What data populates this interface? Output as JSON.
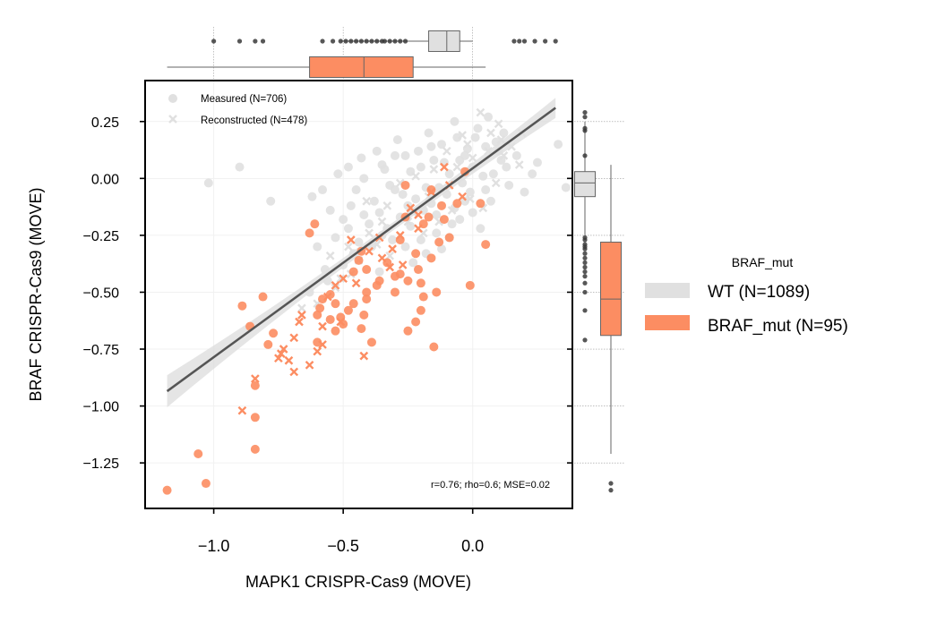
{
  "chart_data": {
    "type": "scatter",
    "xlabel": "MAPK1 CRISPR-Cas9 (MOVE)",
    "ylabel": "BRAF CRISPR-Cas9 (MOVE)",
    "xlim": [
      -1.265,
      0.385
    ],
    "ylim": [
      -1.45,
      0.43
    ],
    "xticks": [
      -1.0,
      -0.5,
      0.0
    ],
    "xtick_labels": [
      "−1.0",
      "−0.5",
      "0.0"
    ],
    "yticks": [
      0.25,
      0.0,
      -0.25,
      -0.5,
      -0.75,
      -1.0,
      -1.25
    ],
    "ytick_labels": [
      "0.25",
      "0.00",
      "−0.25",
      "−0.50",
      "−0.75",
      "−1.00",
      "−1.25"
    ],
    "grid": true,
    "annotation": "r=0.76; rho=0.6; MSE=0.02",
    "marker_legend": {
      "placement": "top-left",
      "entries": [
        {
          "label": "Measured (N=706)",
          "marker": "circle"
        },
        {
          "label": "Reconstructed (N=478)",
          "marker": "x"
        }
      ]
    },
    "hue_legend": {
      "title": "BRAF_mut",
      "placement": "outside-right",
      "entries": [
        {
          "label": "WT (N=1089)",
          "color": "#e0e0e0"
        },
        {
          "label": "BRAF_mut (N=95)",
          "color": "#fc8d62"
        }
      ]
    },
    "regression_line": {
      "x": [
        -1.18,
        0.32
      ],
      "y": [
        -0.935,
        0.31
      ]
    },
    "colors": {
      "wt": "#e0e0e0",
      "mut": "#fc8d62",
      "line": "#555555",
      "ci": "#dcdcdc"
    },
    "series": [
      {
        "name": "BRAF_mut",
        "measured": [
          [
            -1.18,
            -1.37
          ],
          [
            -1.03,
            -1.34
          ],
          [
            -1.06,
            -1.21
          ],
          [
            -0.84,
            -1.19
          ],
          [
            -0.84,
            -1.05
          ],
          [
            -0.84,
            -0.91
          ],
          [
            -0.79,
            -0.73
          ],
          [
            -0.77,
            -0.68
          ],
          [
            -0.86,
            -0.65
          ],
          [
            -0.81,
            -0.52
          ],
          [
            -0.89,
            -0.56
          ],
          [
            -0.61,
            -0.2
          ],
          [
            -0.63,
            -0.24
          ],
          [
            -0.6,
            -0.6
          ],
          [
            -0.59,
            -0.57
          ],
          [
            -0.58,
            -0.53
          ],
          [
            -0.55,
            -0.51
          ],
          [
            -0.53,
            -0.55
          ],
          [
            -0.5,
            -0.64
          ],
          [
            -0.48,
            -0.58
          ],
          [
            -0.46,
            -0.41
          ],
          [
            -0.43,
            -0.32
          ],
          [
            -0.41,
            -0.5
          ],
          [
            -0.43,
            -0.66
          ],
          [
            -0.36,
            -0.45
          ],
          [
            -0.33,
            -0.37
          ],
          [
            -0.3,
            -0.5
          ],
          [
            -0.28,
            -0.42
          ],
          [
            -0.25,
            -0.45
          ],
          [
            -0.22,
            -0.33
          ],
          [
            -0.2,
            -0.46
          ],
          [
            -0.19,
            -0.52
          ],
          [
            -0.2,
            -0.58
          ],
          [
            -0.22,
            -0.63
          ],
          [
            -0.25,
            -0.67
          ],
          [
            -0.21,
            -0.4
          ],
          [
            -0.16,
            -0.35
          ],
          [
            -0.13,
            -0.28
          ],
          [
            -0.09,
            -0.26
          ],
          [
            -0.11,
            -0.18
          ],
          [
            -0.17,
            -0.17
          ],
          [
            -0.06,
            -0.11
          ],
          [
            -0.03,
            0.03
          ],
          [
            0.03,
            -0.11
          ],
          [
            0.05,
            -0.29
          ],
          [
            -0.01,
            -0.47
          ],
          [
            -0.15,
            -0.74
          ],
          [
            -0.14,
            -0.5
          ],
          [
            -0.53,
            -0.67
          ],
          [
            -0.51,
            -0.61
          ],
          [
            -0.46,
            -0.55
          ],
          [
            -0.42,
            -0.6
          ],
          [
            -0.37,
            -0.47
          ],
          [
            -0.3,
            -0.43
          ],
          [
            -0.26,
            -0.17
          ],
          [
            -0.26,
            -0.03
          ],
          [
            -0.41,
            -0.4
          ],
          [
            -0.44,
            -0.36
          ],
          [
            -0.19,
            -0.2
          ],
          [
            -0.16,
            -0.05
          ],
          [
            -0.12,
            -0.12
          ],
          [
            -0.28,
            -0.27
          ],
          [
            -0.55,
            -0.62
          ],
          [
            -0.6,
            -0.72
          ],
          [
            -0.41,
            -0.53
          ],
          [
            -0.39,
            -0.72
          ]
        ],
        "reconstructed": [
          [
            -0.89,
            -1.02
          ],
          [
            -0.84,
            -0.88
          ],
          [
            -0.73,
            -0.75
          ],
          [
            -0.75,
            -0.79
          ],
          [
            -0.71,
            -0.8
          ],
          [
            -0.69,
            -0.85
          ],
          [
            -0.63,
            -0.82
          ],
          [
            -0.67,
            -0.63
          ],
          [
            -0.6,
            -0.76
          ],
          [
            -0.58,
            -0.73
          ],
          [
            -0.53,
            -0.47
          ],
          [
            -0.5,
            -0.44
          ],
          [
            -0.47,
            -0.27
          ],
          [
            -0.42,
            -0.78
          ],
          [
            -0.4,
            -0.32
          ],
          [
            -0.36,
            -0.26
          ],
          [
            -0.35,
            -0.35
          ],
          [
            -0.31,
            -0.31
          ],
          [
            -0.21,
            -0.16
          ],
          [
            -0.16,
            -0.06
          ],
          [
            -0.11,
            0.05
          ],
          [
            -0.09,
            -0.03
          ],
          [
            -0.04,
            -0.08
          ],
          [
            -0.24,
            -0.13
          ],
          [
            -0.28,
            -0.25
          ],
          [
            -0.21,
            -0.22
          ],
          [
            -0.27,
            -0.38
          ],
          [
            -0.32,
            -0.39
          ],
          [
            -0.45,
            -0.46
          ],
          [
            -0.56,
            -0.52
          ],
          [
            -0.58,
            -0.65
          ],
          [
            -0.69,
            -0.7
          ],
          [
            -0.74,
            -0.77
          ],
          [
            -0.51,
            -0.63
          ],
          [
            -0.66,
            -0.6
          ]
        ]
      },
      {
        "name": "WT",
        "measured": [
          [
            -0.9,
            0.05
          ],
          [
            -1.02,
            -0.02
          ],
          [
            -0.78,
            -0.1
          ],
          [
            -0.52,
            0.02
          ],
          [
            -0.48,
            0.05
          ],
          [
            -0.45,
            -0.05
          ],
          [
            -0.42,
            0.0
          ],
          [
            -0.38,
            -0.1
          ],
          [
            -0.35,
            0.06
          ],
          [
            -0.32,
            -0.03
          ],
          [
            -0.3,
            0.1
          ],
          [
            -0.27,
            -0.07
          ],
          [
            -0.24,
            0.03
          ],
          [
            -0.21,
            0.12
          ],
          [
            -0.18,
            -0.04
          ],
          [
            -0.15,
            0.08
          ],
          [
            -0.12,
            0.15
          ],
          [
            -0.09,
            0.02
          ],
          [
            -0.06,
            0.18
          ],
          [
            -0.03,
            0.1
          ],
          [
            0.0,
            0.05
          ],
          [
            0.02,
            0.22
          ],
          [
            0.05,
            0.14
          ],
          [
            0.08,
            0.02
          ],
          [
            0.11,
            0.08
          ],
          [
            0.14,
            -0.03
          ],
          [
            0.2,
            -0.06
          ],
          [
            0.25,
            0.07
          ],
          [
            0.33,
            0.15
          ],
          [
            0.36,
            -0.04
          ],
          [
            -0.55,
            -0.14
          ],
          [
            -0.5,
            -0.18
          ],
          [
            -0.47,
            -0.12
          ],
          [
            -0.4,
            -0.2
          ],
          [
            -0.36,
            -0.15
          ],
          [
            -0.33,
            -0.22
          ],
          [
            -0.28,
            -0.17
          ],
          [
            -0.25,
            -0.12
          ],
          [
            -0.22,
            -0.09
          ],
          [
            -0.19,
            -0.14
          ],
          [
            -0.16,
            -0.11
          ],
          [
            -0.13,
            -0.04
          ],
          [
            -0.1,
            -0.07
          ],
          [
            -0.07,
            -0.13
          ],
          [
            -0.04,
            -0.02
          ],
          [
            -0.01,
            -0.06
          ],
          [
            0.04,
            0.01
          ],
          [
            0.07,
            -0.1
          ],
          [
            0.1,
            0.12
          ],
          [
            0.13,
            0.05
          ],
          [
            -0.44,
            -0.28
          ],
          [
            -0.39,
            -0.3
          ],
          [
            -0.31,
            -0.27
          ],
          [
            -0.26,
            -0.3
          ],
          [
            -0.2,
            -0.27
          ],
          [
            -0.14,
            -0.24
          ],
          [
            -0.08,
            -0.2
          ],
          [
            -0.05,
            -0.18
          ],
          [
            0.0,
            -0.15
          ],
          [
            0.03,
            -0.22
          ],
          [
            -0.6,
            -0.3
          ],
          [
            -0.57,
            -0.4
          ],
          [
            -0.5,
            -0.38
          ],
          [
            -0.46,
            -0.33
          ],
          [
            -0.36,
            -0.41
          ],
          [
            -0.23,
            -0.37
          ],
          [
            -0.18,
            -0.33
          ],
          [
            -0.12,
            -0.31
          ],
          [
            -0.29,
            0.17
          ],
          [
            -0.17,
            0.2
          ],
          [
            -0.07,
            0.25
          ],
          [
            0.01,
            0.18
          ],
          [
            0.06,
            0.27
          ],
          [
            -0.37,
            0.12
          ],
          [
            -0.43,
            0.09
          ],
          [
            -0.58,
            -0.05
          ],
          [
            -0.62,
            -0.08
          ],
          [
            -0.34,
            0.04
          ],
          [
            -0.26,
            0.1
          ],
          [
            -0.11,
            0.07
          ],
          [
            -0.02,
            0.13
          ],
          [
            0.09,
            0.16
          ],
          [
            0.17,
            0.1
          ],
          [
            -0.14,
            -0.16
          ],
          [
            -0.09,
            -0.26
          ],
          [
            -0.03,
            -0.1
          ],
          [
            0.05,
            -0.05
          ],
          [
            -0.42,
            -0.16
          ],
          [
            -0.48,
            -0.22
          ],
          [
            -0.53,
            -0.26
          ],
          [
            -0.56,
            -0.45
          ],
          [
            -0.63,
            -0.5
          ],
          [
            -0.35,
            -0.25
          ],
          [
            -0.3,
            -0.05
          ],
          [
            -0.2,
            0.05
          ],
          [
            -0.16,
            0.14
          ],
          [
            -0.05,
            0.08
          ],
          [
            0.12,
            0.2
          ],
          [
            0.23,
            0.02
          ],
          [
            -0.24,
            -0.21
          ]
        ],
        "reconstructed": [
          [
            0.03,
            0.29
          ],
          [
            0.07,
            0.2
          ],
          [
            0.1,
            0.24
          ],
          [
            -0.02,
            0.15
          ],
          [
            0.12,
            0.1
          ],
          [
            0.15,
            0.14
          ],
          [
            0.18,
            0.06
          ],
          [
            -0.04,
            0.19
          ],
          [
            -0.1,
            0.12
          ],
          [
            -0.08,
            -0.14
          ],
          [
            -0.01,
            -0.09
          ],
          [
            0.04,
            -0.13
          ],
          [
            0.09,
            -0.02
          ],
          [
            -0.13,
            -0.19
          ],
          [
            -0.19,
            -0.24
          ],
          [
            -0.25,
            -0.19
          ],
          [
            -0.32,
            -0.34
          ],
          [
            -0.37,
            -0.29
          ],
          [
            -0.47,
            -0.42
          ],
          [
            -0.53,
            -0.48
          ],
          [
            -0.6,
            -0.55
          ],
          [
            -0.66,
            -0.57
          ],
          [
            -0.55,
            -0.34
          ],
          [
            -0.48,
            -0.3
          ],
          [
            -0.4,
            -0.24
          ],
          [
            -0.33,
            -0.12
          ],
          [
            -0.28,
            -0.02
          ],
          [
            -0.22,
            0.01
          ],
          [
            -0.15,
            0.04
          ],
          [
            -0.06,
            0.05
          ],
          [
            0.0,
            0.09
          ],
          [
            0.06,
            0.12
          ],
          [
            0.19,
            0.2
          ],
          [
            0.11,
            0.17
          ],
          [
            -0.17,
            -0.08
          ],
          [
            -0.23,
            -0.15
          ],
          [
            -0.35,
            -0.19
          ],
          [
            -0.44,
            -0.36
          ],
          [
            -0.51,
            -0.44
          ],
          [
            -0.41,
            -0.1
          ]
        ]
      }
    ],
    "marginal_x": {
      "WT": {
        "whisker_low": -0.51,
        "q1": -0.17,
        "median": -0.1,
        "q3": -0.05,
        "whisker_high": 0.0,
        "outliers": [
          -1.0,
          -0.9,
          -0.84,
          -0.81,
          -0.58,
          -0.54,
          -0.51,
          -0.49,
          -0.47,
          -0.45,
          -0.43,
          -0.41,
          -0.39,
          -0.37,
          -0.35,
          -0.34,
          -0.32,
          -0.3,
          -0.28,
          -0.26,
          0.16,
          0.18,
          0.2,
          0.24,
          0.28,
          0.32
        ]
      },
      "BRAF_mut": {
        "whisker_low": -1.18,
        "q1": -0.63,
        "median": -0.42,
        "q3": -0.23,
        "whisker_high": 0.05,
        "outliers": []
      }
    },
    "marginal_y": {
      "WT": {
        "whisker_low": -0.25,
        "q1": -0.08,
        "median": -0.02,
        "q3": 0.03,
        "whisker_high": 0.25,
        "outliers": [
          0.29,
          0.27,
          0.22,
          0.21,
          0.1,
          -0.26,
          -0.27,
          -0.29,
          -0.3,
          -0.31,
          -0.33,
          -0.35,
          -0.37,
          -0.39,
          -0.41,
          -0.43,
          -0.46,
          -0.5,
          -0.58,
          -0.71
        ]
      },
      "BRAF_mut": {
        "whisker_low": -1.21,
        "q1": -0.69,
        "median": -0.53,
        "q3": -0.28,
        "whisker_high": 0.06,
        "outliers": [
          -1.34,
          -1.37
        ]
      }
    }
  }
}
